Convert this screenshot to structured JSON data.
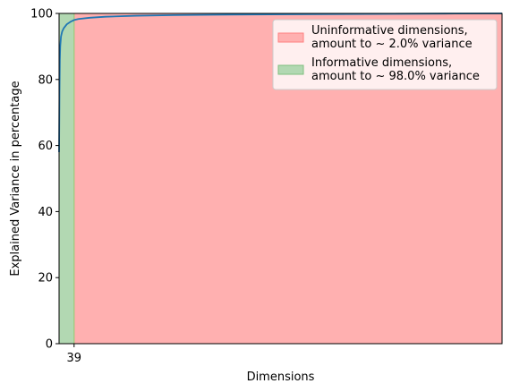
{
  "chart_data": {
    "type": "area",
    "title": "",
    "xlabel": "Dimensions",
    "ylabel": "Explained Variance in percentage",
    "xlim": [
      0,
      1150
    ],
    "ylim": [
      0,
      100
    ],
    "x_ticks": [
      39
    ],
    "x_tick_labels": [
      "39"
    ],
    "y_ticks": [
      0,
      20,
      40,
      60,
      80,
      100
    ],
    "y_tick_labels": [
      "0",
      "20",
      "40",
      "60",
      "80",
      "100"
    ],
    "threshold_x": 39,
    "regions": [
      {
        "name": "Uninformative dimensions,\namount to ~ 2.0% variance",
        "x_from": 39,
        "x_to": 1150,
        "color": "#ffb0b0",
        "edge": "#ff7f7f"
      },
      {
        "name": "Informative dimensions,\namount to ~ 98.0% variance",
        "x_from": 0,
        "x_to": 39,
        "color": "#b2d8b2",
        "edge": "#7fbf7f"
      }
    ],
    "series": [
      {
        "color": "#1f77b4",
        "x": [
          0,
          1,
          2,
          3,
          5,
          8,
          12,
          20,
          30,
          39,
          50,
          80,
          120,
          200,
          300,
          400,
          600,
          800,
          1000,
          1150
        ],
        "y": [
          58,
          75,
          86,
          90,
          93,
          94.5,
          95.5,
          96.7,
          97.5,
          98.0,
          98.3,
          98.7,
          99.0,
          99.3,
          99.5,
          99.6,
          99.75,
          99.85,
          99.95,
          100
        ]
      }
    ],
    "grid": false,
    "legend_position": "top-right"
  }
}
